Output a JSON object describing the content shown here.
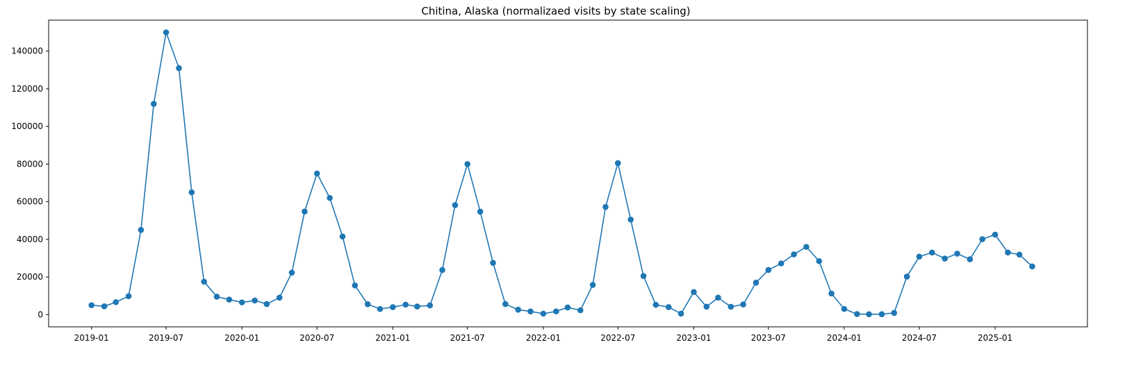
{
  "chart_data": {
    "type": "line",
    "title": "Chitina, Alaska (normalizaed visits by state scaling)",
    "xlabel": "",
    "ylabel": "",
    "x_ticks": [
      "2019-01",
      "2019-07",
      "2020-01",
      "2020-07",
      "2021-01",
      "2021-07",
      "2022-01",
      "2022-07",
      "2023-01",
      "2023-07",
      "2024-01",
      "2024-07",
      "2025-01"
    ],
    "y_ticks": [
      0,
      20000,
      40000,
      60000,
      80000,
      100000,
      120000,
      140000
    ],
    "xlim": [
      "2018-09-19",
      "2025-08-13"
    ],
    "ylim": [
      -6500,
      156500
    ],
    "grid": false,
    "line_color": "#1f77b4",
    "marker": "circle",
    "series": [
      {
        "x": [
          "2019-01",
          "2019-02",
          "2019-03",
          "2019-04",
          "2019-05",
          "2019-06",
          "2019-07",
          "2019-08",
          "2019-09",
          "2019-10",
          "2019-11",
          "2019-12",
          "2020-01",
          "2020-02",
          "2020-03",
          "2020-04",
          "2020-05",
          "2020-06",
          "2020-07",
          "2020-08",
          "2020-09",
          "2020-10",
          "2020-11",
          "2020-12",
          "2021-01",
          "2021-02",
          "2021-03",
          "2021-04",
          "2021-05",
          "2021-06",
          "2021-07",
          "2021-08",
          "2021-09",
          "2021-10",
          "2021-11",
          "2021-12",
          "2022-01",
          "2022-02",
          "2022-03",
          "2022-04",
          "2022-05",
          "2022-06",
          "2022-07",
          "2022-08",
          "2022-09",
          "2022-10",
          "2022-11",
          "2022-12",
          "2023-01",
          "2023-02",
          "2023-03",
          "2023-04",
          "2023-05",
          "2023-06",
          "2023-07",
          "2023-08",
          "2023-09",
          "2023-10",
          "2023-11",
          "2023-12",
          "2024-01",
          "2024-02",
          "2024-03",
          "2024-04",
          "2024-05",
          "2024-06",
          "2024-07",
          "2024-08",
          "2024-09",
          "2024-10",
          "2024-11",
          "2024-12",
          "2025-01",
          "2025-02",
          "2025-03",
          "2025-04"
        ],
        "values": [
          5000,
          4400,
          6600,
          9800,
          45000,
          112000,
          150000,
          131000,
          65000,
          17500,
          9500,
          8000,
          6500,
          7500,
          5600,
          9000,
          22300,
          54800,
          75000,
          62000,
          41500,
          15500,
          5500,
          3000,
          4000,
          5300,
          4300,
          4900,
          23700,
          58200,
          80000,
          54700,
          27500,
          5600,
          2600,
          1700,
          500,
          1700,
          3800,
          2300,
          15800,
          57200,
          80500,
          50500,
          20500,
          5200,
          4000,
          500,
          12000,
          4200,
          9000,
          4200,
          5400,
          17000,
          23700,
          27200,
          32000,
          36000,
          28400,
          11200,
          3000,
          300,
          200,
          200,
          900,
          20200,
          30800,
          33000,
          29800,
          32400,
          29400,
          40100,
          42500,
          33000,
          31900,
          25600
        ]
      }
    ]
  }
}
